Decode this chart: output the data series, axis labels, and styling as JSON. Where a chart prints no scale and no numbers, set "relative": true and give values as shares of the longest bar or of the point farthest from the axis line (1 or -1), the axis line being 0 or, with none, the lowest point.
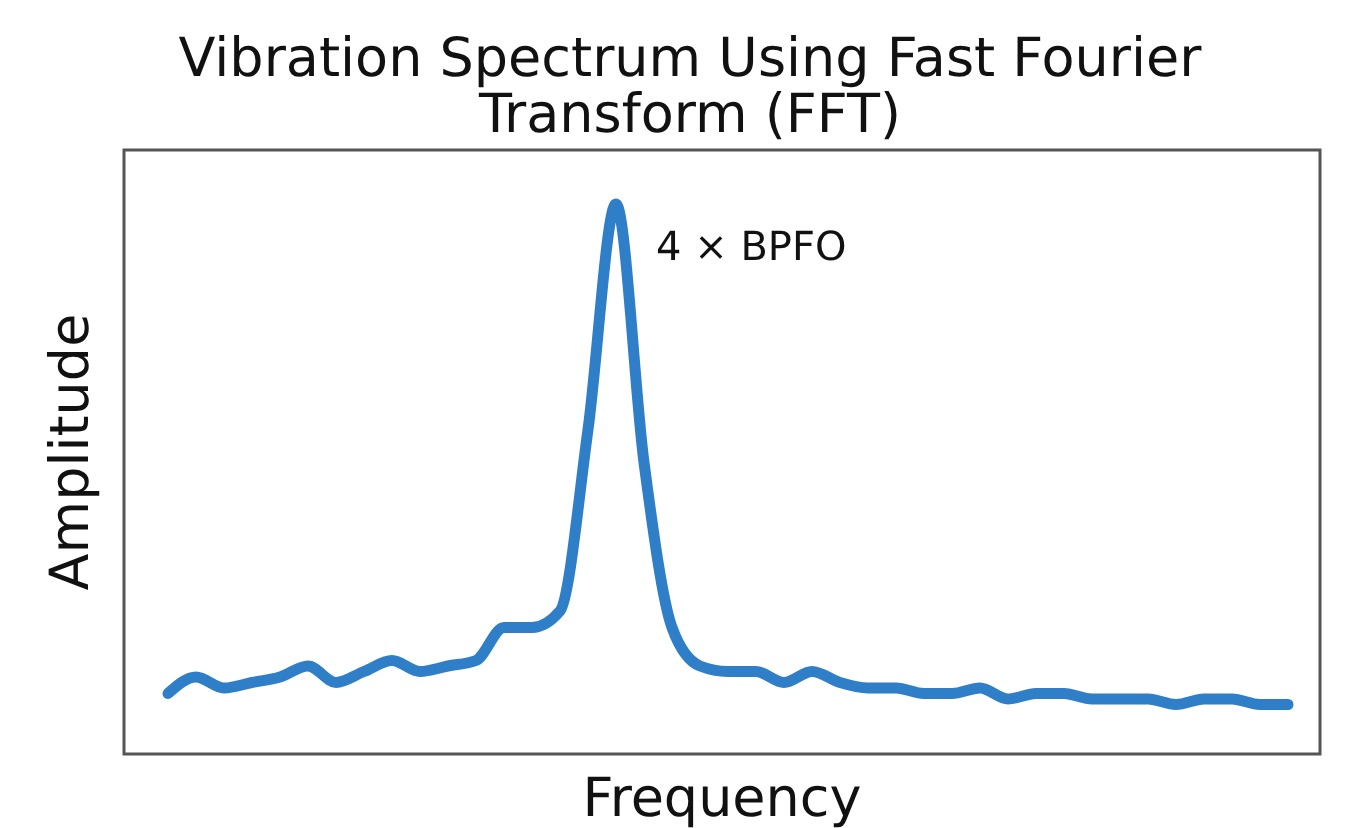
{
  "chart_data": {
    "type": "line",
    "title": "Vibration Spectrum Using Fast Fourier Transform (FFT)",
    "xlabel": "Frequency",
    "ylabel": "Amplitude",
    "relative": true,
    "tick_labels": false,
    "annotations": [
      "4 × BPFO"
    ],
    "categories": [
      null,
      null,
      null,
      null,
      null,
      null,
      null,
      null,
      null,
      null,
      null,
      null,
      null,
      null,
      null,
      null,
      null,
      null,
      null,
      null,
      null,
      null,
      null,
      null,
      null,
      null,
      null,
      null,
      null,
      null,
      null,
      null,
      null,
      null,
      null,
      null,
      null,
      null,
      null,
      null,
      null
    ],
    "series": [
      {
        "color": "#2f7ec8",
        "values": [
          0.11,
          0.14,
          0.12,
          0.13,
          0.14,
          0.16,
          0.13,
          0.15,
          0.17,
          0.15,
          0.16,
          0.17,
          0.23,
          0.23,
          0.26,
          0.59,
          1,
          0.53,
          0.23,
          0.16,
          0.15,
          0.15,
          0.13,
          0.15,
          0.13,
          0.12,
          0.12,
          0.11,
          0.11,
          0.12,
          0.1,
          0.11,
          0.11,
          0.1,
          0.1,
          0.1,
          0.09,
          0.1,
          0.1,
          0.09,
          0.09
        ]
      }
    ]
  }
}
